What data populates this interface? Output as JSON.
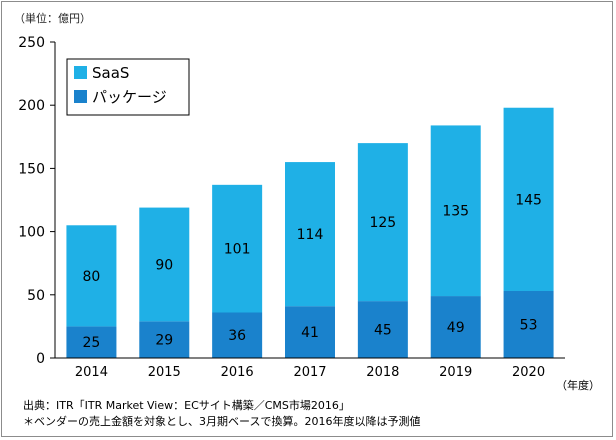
{
  "chart_data": {
    "type": "bar",
    "stacked": true,
    "unit_label": "（単位：億円）",
    "x_unit_label": "（年度）",
    "categories": [
      "2014",
      "2015",
      "2016",
      "2017",
      "2018",
      "2019",
      "2020"
    ],
    "series": [
      {
        "name": "パッケージ",
        "values": [
          25,
          29,
          36,
          41,
          45,
          49,
          53
        ],
        "color": "#1a82cc"
      },
      {
        "name": "SaaS",
        "values": [
          80,
          90,
          101,
          114,
          125,
          135,
          145
        ],
        "color": "#1fb0e6"
      }
    ],
    "ylim": [
      0,
      250
    ],
    "yticks": [
      0,
      50,
      100,
      150,
      200,
      250
    ],
    "grid": false,
    "legend_position": "top-left",
    "notes": [
      "出典：ITR「ITR Market View：ECサイト構築／CMS市場2016」",
      "＊ベンダーの売上金額を対象とし、3月期ベースで換算。2016年度以降は予測値"
    ]
  }
}
